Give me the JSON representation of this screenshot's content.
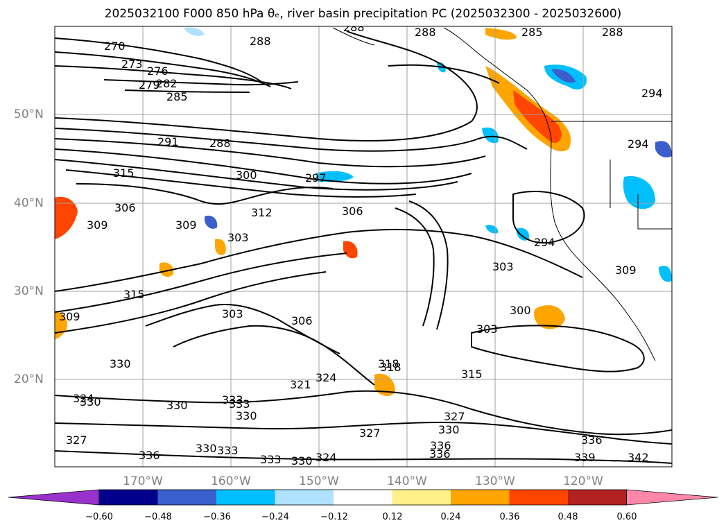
{
  "title": "2025032100 F000 850 hPa θe, river basin precipitation PC (2025032300 - 2025032600)",
  "lat_labels": [
    "50°N",
    "40°N",
    "30°N",
    "20°N"
  ],
  "lon_labels": [
    "170°W",
    "160°W",
    "150°W",
    "140°W",
    "130°W",
    "120°W"
  ],
  "colorbar": {
    "ticks": [
      "−0.60",
      "−0.48",
      "−0.36",
      "−0.24",
      "−0.12",
      "0.12",
      "0.24",
      "0.36",
      "0.48",
      "0.60"
    ],
    "colors": [
      "#9932cc",
      "#00008b",
      "#3a5fcd",
      "#00bfff",
      "#b0e2ff",
      "#ffffff",
      "#fff08a",
      "#ffa500",
      "#ff4500",
      "#b22222",
      "#ff88aa"
    ]
  },
  "contour_labels": [
    "270",
    "273",
    "276",
    "279",
    "282",
    "285",
    "288",
    "288",
    "288",
    "285",
    "288",
    "291",
    "288",
    "300",
    "297",
    "294",
    "294",
    "294",
    "303",
    "306",
    "312",
    "309",
    "315",
    "306",
    "303",
    "303",
    "300",
    "303",
    "306",
    "309",
    "315",
    "318",
    "321",
    "324",
    "327",
    "330",
    "330",
    "327",
    "330",
    "333",
    "336",
    "333",
    "336",
    "339",
    "342",
    "336",
    "309",
    "318",
    "330",
    "324",
    "327",
    "330",
    "333",
    "330",
    "336",
    "324",
    "333",
    "330",
    "315",
    "309"
  ]
}
